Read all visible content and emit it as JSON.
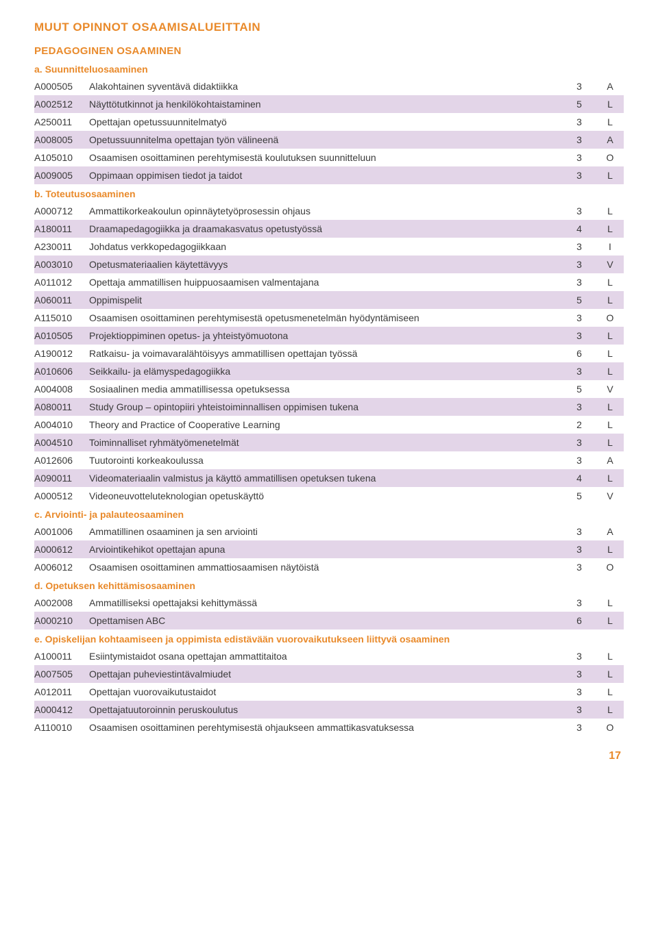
{
  "colors": {
    "title": "#e98a2b",
    "subtitle": "#e98a2b",
    "section": "#e98a2b",
    "row_alt": "#e3d5e8",
    "text": "#3a3a3a",
    "pagenum": "#e98a2b"
  },
  "mainTitle": "MUUT OPINNOT OSAAMISALUEITTAIN",
  "subTitle": "PEDAGOGINEN OSAAMINEN",
  "pageNumber": "17",
  "sections": [
    {
      "label": "a.   Suunnitteluosaaminen",
      "rows": [
        {
          "code": "A000505",
          "desc": "Alakohtainen syventävä didaktiikka",
          "val": "3",
          "tag": "A"
        },
        {
          "code": "A002512",
          "desc": "Näyttötutkinnot ja henkilökohtaistaminen",
          "val": "5",
          "tag": "L"
        },
        {
          "code": "A250011",
          "desc": "Opettajan opetussuunnitelmatyö",
          "val": "3",
          "tag": "L"
        },
        {
          "code": "A008005",
          "desc": "Opetussuunnitelma opettajan työn välineenä",
          "val": "3",
          "tag": "A"
        },
        {
          "code": "A105010",
          "desc": "Osaamisen osoittaminen perehtymisestä koulutuksen suunnitteluun",
          "val": "3",
          "tag": "O"
        },
        {
          "code": "A009005",
          "desc": "Oppimaan oppimisen tiedot ja taidot",
          "val": "3",
          "tag": "L"
        }
      ]
    },
    {
      "label": "b.   Toteutusosaaminen",
      "rows": [
        {
          "code": "A000712",
          "desc": "Ammattikorkeakoulun opinnäytetyöprosessin ohjaus",
          "val": "3",
          "tag": "L"
        },
        {
          "code": "A180011",
          "desc": "Draamapedagogiikka ja draamakasvatus opetustyössä",
          "val": "4",
          "tag": "L"
        },
        {
          "code": "A230011",
          "desc": "Johdatus verkkopedagogiikkaan",
          "val": "3",
          "tag": "I"
        },
        {
          "code": "A003010",
          "desc": "Opetusmateriaalien käytettävyys",
          "val": "3",
          "tag": "V"
        },
        {
          "code": "A011012",
          "desc": "Opettaja ammatillisen huippuosaamisen valmentajana",
          "val": "3",
          "tag": "L"
        },
        {
          "code": "A060011",
          "desc": "Oppimispelit",
          "val": "5",
          "tag": "L"
        },
        {
          "code": "A115010",
          "desc": "Osaamisen osoittaminen perehtymisestä opetusmenetelmän hyödyntämiseen",
          "val": "3",
          "tag": "O"
        },
        {
          "code": "A010505",
          "desc": "Projektioppiminen opetus- ja yhteistyömuotona",
          "val": "3",
          "tag": "L"
        },
        {
          "code": "A190012",
          "desc": "Ratkaisu- ja voimavaralähtöisyys ammatillisen opettajan työssä",
          "val": "6",
          "tag": "L"
        },
        {
          "code": "A010606",
          "desc": "Seikkailu- ja elämyspedagogiikka",
          "val": "3",
          "tag": "L"
        },
        {
          "code": "A004008",
          "desc": "Sosiaalinen media ammatillisessa opetuksessa",
          "val": "5",
          "tag": "V"
        },
        {
          "code": "A080011",
          "desc": "Study Group – opintopiiri yhteistoiminnallisen oppimisen tukena",
          "val": "3",
          "tag": "L"
        },
        {
          "code": "A004010",
          "desc": "Theory and Practice of Cooperative Learning",
          "val": "2",
          "tag": "L"
        },
        {
          "code": "A004510",
          "desc": "Toiminnalliset ryhmätyömenetelmät",
          "val": "3",
          "tag": "L"
        },
        {
          "code": "A012606",
          "desc": "Tuutorointi korkeakoulussa",
          "val": "3",
          "tag": "A"
        },
        {
          "code": "A090011",
          "desc": "Videomateriaalin valmistus ja käyttö ammatillisen opetuksen tukena",
          "val": "4",
          "tag": "L"
        },
        {
          "code": "A000512",
          "desc": "Videoneuvotteluteknologian opetuskäyttö",
          "val": "5",
          "tag": "V"
        }
      ]
    },
    {
      "label": "c.   Arviointi- ja palauteosaaminen",
      "rows": [
        {
          "code": "A001006",
          "desc": "Ammatillinen osaaminen ja sen arviointi",
          "val": "3",
          "tag": "A"
        },
        {
          "code": "A000612",
          "desc": "Arviointikehikot opettajan apuna",
          "val": "3",
          "tag": "L"
        },
        {
          "code": "A006012",
          "desc": "Osaamisen osoittaminen ammattiosaamisen näytöistä",
          "val": "3",
          "tag": "O"
        }
      ]
    },
    {
      "label": "d.   Opetuksen kehittämisosaaminen",
      "rows": [
        {
          "code": "A002008",
          "desc": "Ammatilliseksi opettajaksi kehittymässä",
          "val": "3",
          "tag": "L"
        },
        {
          "code": "A000210",
          "desc": "Opettamisen ABC",
          "val": "6",
          "tag": "L"
        }
      ]
    },
    {
      "label": "e.   Opiskelijan kohtaamiseen ja oppimista edistävään vuorovaikutukseen liittyvä osaaminen",
      "rows": [
        {
          "code": "A100011",
          "desc": "Esiintymistaidot osana opettajan ammattitaitoa",
          "val": "3",
          "tag": "L"
        },
        {
          "code": "A007505",
          "desc": "Opettajan puheviestintävalmiudet",
          "val": "3",
          "tag": "L"
        },
        {
          "code": "A012011",
          "desc": "Opettajan vuorovaikutustaidot",
          "val": "3",
          "tag": "L"
        },
        {
          "code": "A000412",
          "desc": "Opettajatuutoroinnin peruskoulutus",
          "val": "3",
          "tag": "L"
        },
        {
          "code": "A110010",
          "desc": "Osaamisen osoittaminen perehtymisestä ohjaukseen ammattikasvatuksessa",
          "val": "3",
          "tag": "O"
        }
      ]
    }
  ]
}
